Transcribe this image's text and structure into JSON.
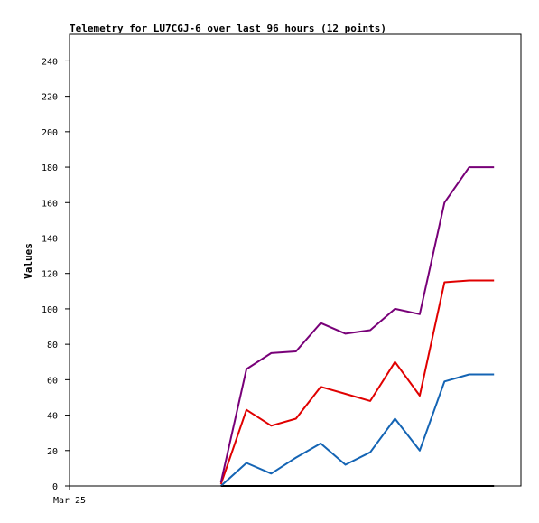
{
  "chart_data": {
    "type": "line",
    "title": "Telemetry for LU7CGJ-6 over last 96 hours (12 points)",
    "ylabel": "Values",
    "xlabel": "",
    "x_tick_labels": [
      {
        "label": "Mar 25",
        "x": 0
      }
    ],
    "x": [
      20.8,
      24.3,
      27.7,
      31.1,
      34.5,
      37.9,
      41.3,
      44.7,
      48.1,
      51.5,
      54.9,
      58.3
    ],
    "xlim": [
      0,
      62
    ],
    "ylim": [
      0,
      255
    ],
    "yticks": [
      0,
      20,
      40,
      60,
      80,
      100,
      120,
      140,
      160,
      180,
      200,
      220,
      240
    ],
    "grid": false,
    "legend": "none",
    "series": [
      {
        "color": "#000000",
        "values": [
          0,
          0,
          0,
          0,
          0,
          0,
          0,
          0,
          0,
          0,
          0,
          0
        ]
      },
      {
        "color": "#1464b4",
        "values": [
          0,
          13,
          7,
          16,
          24,
          12,
          19,
          38,
          20,
          59,
          63,
          63
        ]
      },
      {
        "color": "#e00000",
        "values": [
          1,
          43,
          34,
          38,
          56,
          52,
          48,
          70,
          51,
          115,
          116,
          116
        ]
      },
      {
        "color": "#780078",
        "values": [
          2,
          66,
          75,
          76,
          92,
          86,
          88,
          100,
          97,
          160,
          180,
          180
        ]
      }
    ]
  }
}
